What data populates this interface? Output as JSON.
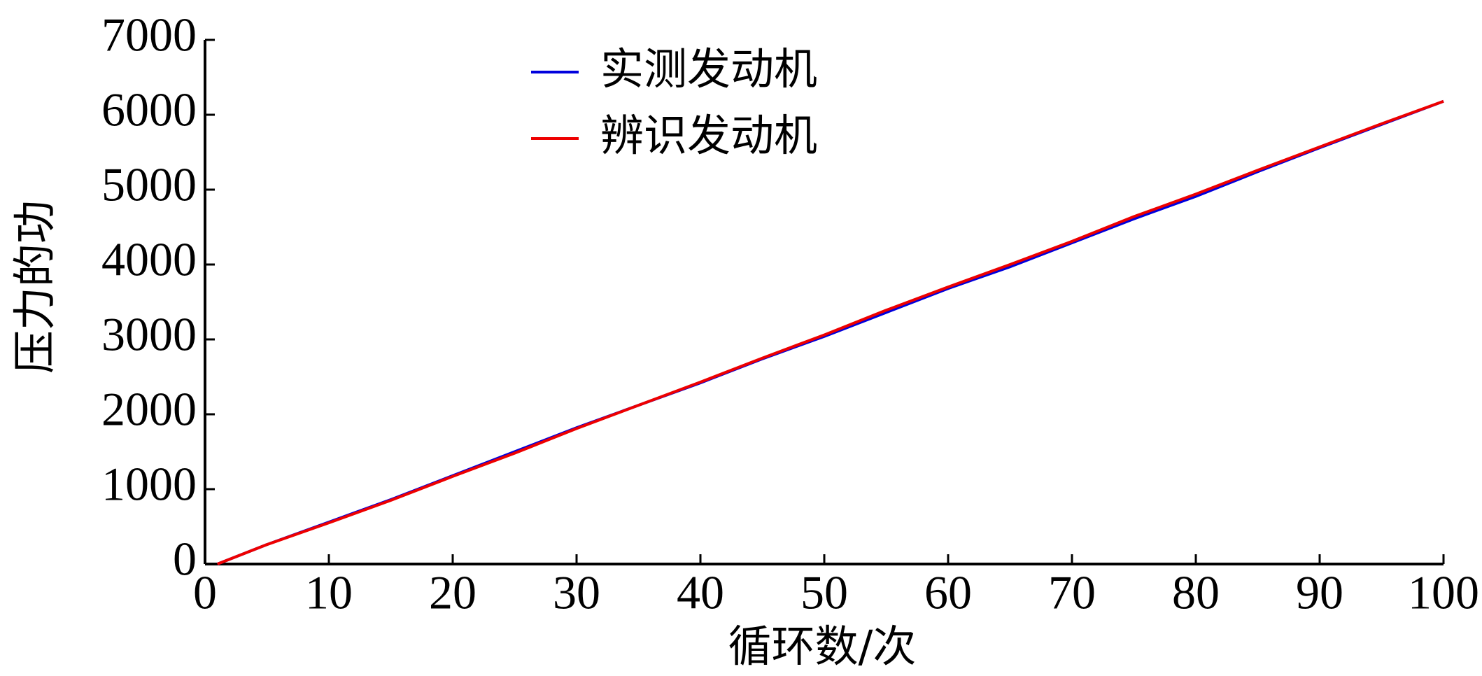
{
  "chart_data": {
    "type": "line",
    "x_label": "循环数/次",
    "y_label": "压力的功",
    "x": [
      1,
      5,
      10,
      15,
      20,
      25,
      30,
      35,
      40,
      45,
      50,
      55,
      60,
      65,
      70,
      75,
      80,
      85,
      90,
      95,
      100
    ],
    "series": [
      {
        "name": "实测发动机",
        "color": "#0000dd",
        "values": [
          0,
          260,
          560,
          860,
          1180,
          1500,
          1820,
          2120,
          2420,
          2740,
          3040,
          3360,
          3680,
          3970,
          4290,
          4610,
          4910,
          5240,
          5560,
          5870,
          6180
        ]
      },
      {
        "name": "辨识发动机",
        "color": "#ee0000",
        "values": [
          0,
          260,
          550,
          850,
          1170,
          1480,
          1810,
          2120,
          2430,
          2750,
          3060,
          3390,
          3700,
          4000,
          4310,
          4640,
          4940,
          5260,
          5570,
          5880,
          6180
        ]
      }
    ],
    "xlim": [
      0,
      100
    ],
    "xticks": [
      0,
      10,
      20,
      30,
      40,
      50,
      60,
      70,
      80,
      90,
      100
    ],
    "ylim": [
      0,
      7000
    ],
    "yticks": [
      0,
      1000,
      2000,
      3000,
      4000,
      5000,
      6000,
      7000
    ],
    "grid": false
  }
}
